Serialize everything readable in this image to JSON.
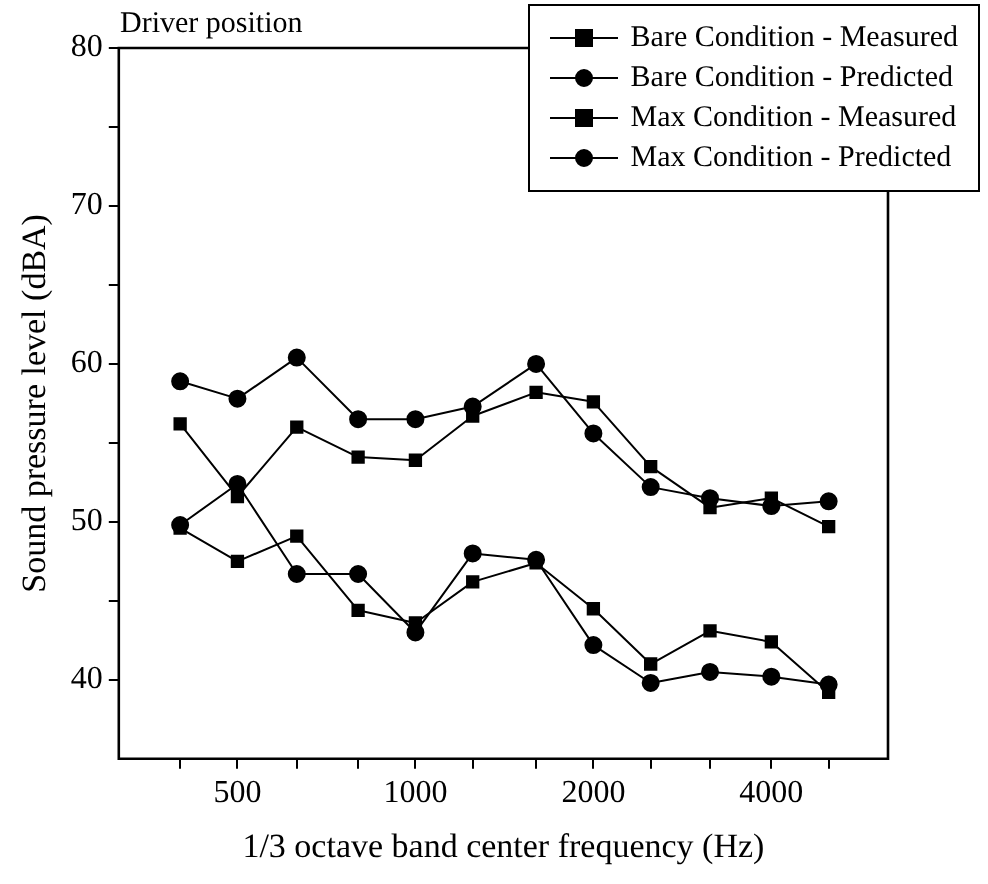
{
  "chart_data": {
    "type": "line",
    "title": "Driver position",
    "xlabel": "1/3 octave band center frequency (Hz)",
    "ylabel": "Sound pressure level (dBA)",
    "x": [
      400,
      500,
      630,
      800,
      1000,
      1250,
      1600,
      2000,
      2500,
      3150,
      4000,
      5000
    ],
    "log": "x",
    "xlim": [
      315,
      6300
    ],
    "xticks": [
      {
        "value": 400,
        "label": null
      },
      500,
      {
        "value": 630,
        "label": null
      },
      {
        "value": 800,
        "label": null
      },
      1000,
      {
        "value": 1250,
        "label": null
      },
      {
        "value": 1600,
        "label": null
      },
      2000,
      {
        "value": 2500,
        "label": null
      },
      {
        "value": 3150,
        "label": null
      },
      4000,
      {
        "value": 5000,
        "label": null
      }
    ],
    "ylim": [
      35,
      80
    ],
    "yticks": [
      40,
      {
        "value": 45,
        "label": null
      },
      50,
      {
        "value": 55,
        "label": null
      },
      60,
      {
        "value": 65,
        "label": null
      },
      70,
      {
        "value": 75,
        "label": null
      },
      80
    ],
    "grid": false,
    "legend": "top right",
    "line_style": "solid",
    "series": [
      {
        "name": "Bare Condition - Measured",
        "color": "#000000",
        "marker": "square",
        "values": [
          56.2,
          51.6,
          56.0,
          54.1,
          53.9,
          56.7,
          58.2,
          57.6,
          53.5,
          50.9,
          51.5,
          49.7
        ]
      },
      {
        "name": "Bare Condition - Predicted",
        "color": "#000000",
        "marker": "circle",
        "values": [
          58.9,
          57.8,
          60.4,
          56.5,
          56.5,
          57.3,
          60.0,
          55.6,
          52.2,
          51.5,
          51.0,
          51.3
        ]
      },
      {
        "name": "Max Condition - Measured",
        "color": "#000000",
        "marker": "square",
        "values": [
          49.6,
          47.5,
          49.1,
          44.4,
          43.6,
          46.2,
          47.4,
          44.5,
          41.0,
          43.1,
          42.4,
          39.2
        ]
      },
      {
        "name": "Max Condition - Predicted",
        "color": "#000000",
        "marker": "circle",
        "values": [
          49.8,
          52.4,
          46.7,
          46.7,
          43.0,
          48.0,
          47.6,
          42.2,
          39.8,
          40.5,
          40.2,
          39.7
        ]
      }
    ]
  }
}
